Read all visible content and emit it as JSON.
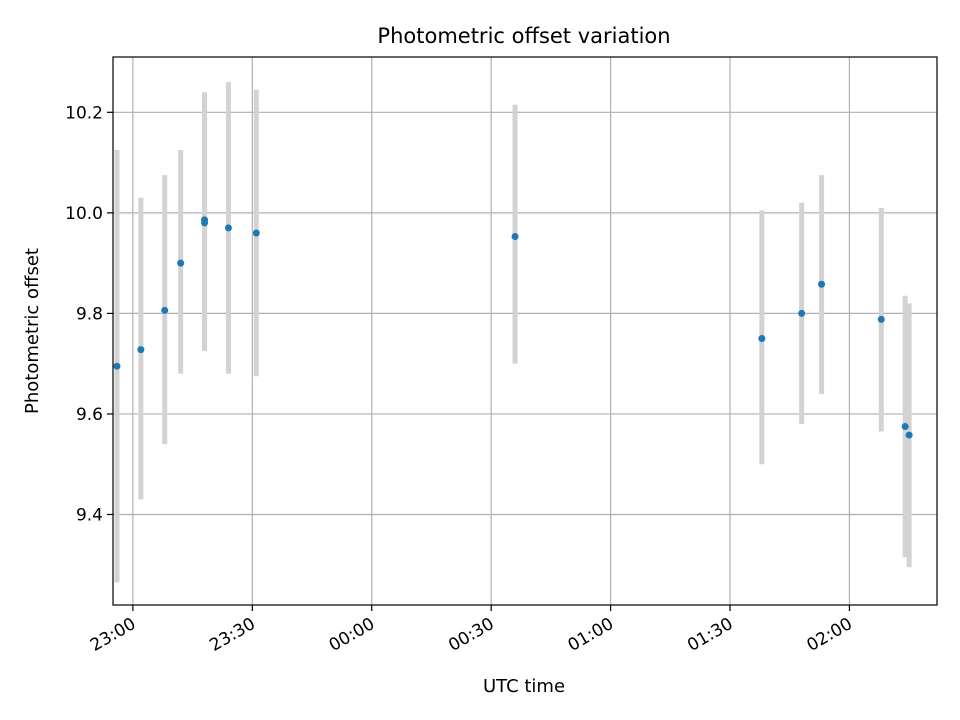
{
  "chart_data": {
    "type": "scatter",
    "title": "Photometric offset variation",
    "xlabel": "UTC time",
    "ylabel": "Photometric offset",
    "grid": true,
    "x_axis_kind": "time (UTC)",
    "xlim": [
      "22:55",
      "02:22"
    ],
    "ylim": [
      9.22,
      10.31
    ],
    "x_ticks": [
      "23:00",
      "23:30",
      "00:00",
      "00:30",
      "01:00",
      "01:30",
      "02:00"
    ],
    "y_ticks": [
      9.4,
      9.6,
      9.8,
      10.0,
      10.2
    ],
    "y_tick_labels": [
      "9.4",
      "9.6",
      "9.8",
      "10.0",
      "10.2"
    ],
    "marker_color": "#1f77b4",
    "errorbar_color": "#d3d3d3",
    "points": [
      {
        "time": "22:56",
        "y": 9.695,
        "low": 9.265,
        "high": 10.125
      },
      {
        "time": "23:02",
        "y": 9.728,
        "low": 9.43,
        "high": 10.03
      },
      {
        "time": "23:08",
        "y": 9.806,
        "low": 9.54,
        "high": 10.075
      },
      {
        "time": "23:12",
        "y": 9.9,
        "low": 9.68,
        "high": 10.125
      },
      {
        "time": "23:18",
        "y": 9.98,
        "low": 9.725,
        "high": 10.235
      },
      {
        "time": "23:18",
        "y": 9.986,
        "low": 9.735,
        "high": 10.24
      },
      {
        "time": "23:24",
        "y": 9.97,
        "low": 9.68,
        "high": 10.26
      },
      {
        "time": "23:31",
        "y": 9.96,
        "low": 9.675,
        "high": 10.245
      },
      {
        "time": "00:36",
        "y": 9.953,
        "low": 9.7,
        "high": 10.215
      },
      {
        "time": "01:38",
        "y": 9.75,
        "low": 9.5,
        "high": 10.005
      },
      {
        "time": "01:48",
        "y": 9.8,
        "low": 9.58,
        "high": 10.02
      },
      {
        "time": "01:53",
        "y": 9.858,
        "low": 9.64,
        "high": 10.075
      },
      {
        "time": "02:08",
        "y": 9.788,
        "low": 9.565,
        "high": 10.01
      },
      {
        "time": "02:14",
        "y": 9.575,
        "low": 9.315,
        "high": 9.835
      },
      {
        "time": "02:15",
        "y": 9.558,
        "low": 9.295,
        "high": 9.82
      }
    ]
  }
}
